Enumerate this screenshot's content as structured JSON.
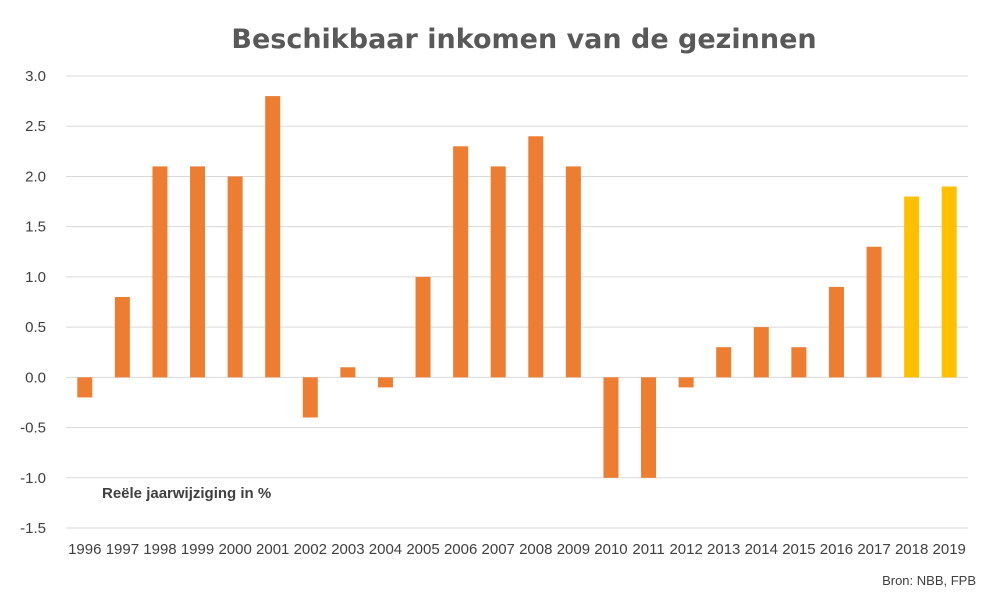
{
  "chart_data": {
    "type": "bar",
    "title": "Beschikbaar inkomen van de gezinnen",
    "annotation": "Reële jaarwijziging in %",
    "source": "Bron: NBB, FPB",
    "xlabel": "",
    "ylabel": "",
    "ylim": [
      -1.5,
      3.0
    ],
    "yticks": [
      "3.0",
      "2.5",
      "2.0",
      "1.5",
      "1.0",
      "0.5",
      "0.0",
      "-0.5",
      "-1.0",
      "-1.5"
    ],
    "grid": true,
    "categories": [
      "1996",
      "1997",
      "1998",
      "1999",
      "2000",
      "2001",
      "2002",
      "2003",
      "2004",
      "2005",
      "2006",
      "2007",
      "2008",
      "2009",
      "2010",
      "2011",
      "2012",
      "2013",
      "2014",
      "2015",
      "2016",
      "2017",
      "2018",
      "2019"
    ],
    "values": [
      -0.2,
      0.8,
      2.1,
      2.1,
      2.0,
      2.8,
      -0.4,
      0.1,
      -0.1,
      1.0,
      2.3,
      2.1,
      2.4,
      2.1,
      -1.0,
      -1.0,
      -0.1,
      0.3,
      0.5,
      0.3,
      0.9,
      1.3,
      1.8,
      1.9
    ],
    "colors": {
      "actual": "#ed7d31",
      "forecast": "#ffc000"
    },
    "forecast_categories": [
      "2018",
      "2019"
    ]
  }
}
